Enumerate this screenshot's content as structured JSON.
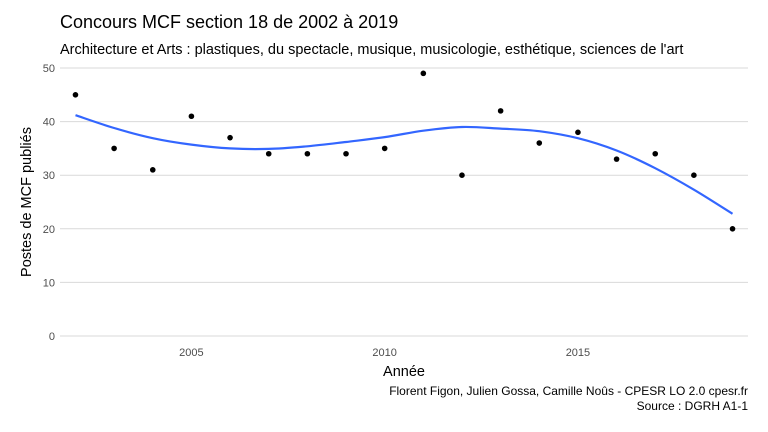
{
  "chart_data": {
    "type": "scatter",
    "title": "Concours MCF section 18 de 2002 à 2019",
    "subtitle": "Architecture et Arts : plastiques, du spectacle, musique, musicologie, esthétique, sciences de l'art",
    "xlabel": "Année",
    "ylabel": "Postes de MCF publiés",
    "xlim": [
      2001.6,
      2019.4
    ],
    "ylim": [
      0,
      50
    ],
    "x_ticks": [
      2005,
      2010,
      2015
    ],
    "x_tick_labels": [
      "2005",
      "2010",
      "2015"
    ],
    "y_ticks": [
      0,
      10,
      20,
      30,
      40,
      50
    ],
    "y_tick_labels": [
      "0",
      "10",
      "20",
      "30",
      "40",
      "50"
    ],
    "grid": true,
    "x": [
      2002,
      2003,
      2004,
      2005,
      2006,
      2007,
      2008,
      2009,
      2010,
      2011,
      2012,
      2013,
      2014,
      2015,
      2016,
      2017,
      2018,
      2019
    ],
    "values": [
      45,
      35,
      31,
      41,
      37,
      34,
      34,
      34,
      35,
      49,
      30,
      42,
      36,
      38,
      33,
      34,
      30,
      20
    ],
    "trend": {
      "x": [
        2002,
        2003,
        2004,
        2005,
        2006,
        2007,
        2008,
        2009,
        2010,
        2011,
        2012,
        2013,
        2014,
        2015,
        2016,
        2017,
        2018,
        2019
      ],
      "y": [
        41.2,
        38.8,
        36.9,
        35.7,
        35.0,
        34.9,
        35.4,
        36.2,
        37.1,
        38.3,
        39.0,
        38.7,
        38.2,
        36.9,
        34.6,
        31.3,
        27.3,
        22.8
      ],
      "color": "#3366ff"
    },
    "point_color": "#000000",
    "grid_color": "#d9d9d9"
  },
  "caption": {
    "line1": "Florent Figon, Julien Gossa, Camille Noûs - CPESR LO 2.0 cpesr.fr",
    "line2": "Source : DGRH A1-1"
  }
}
